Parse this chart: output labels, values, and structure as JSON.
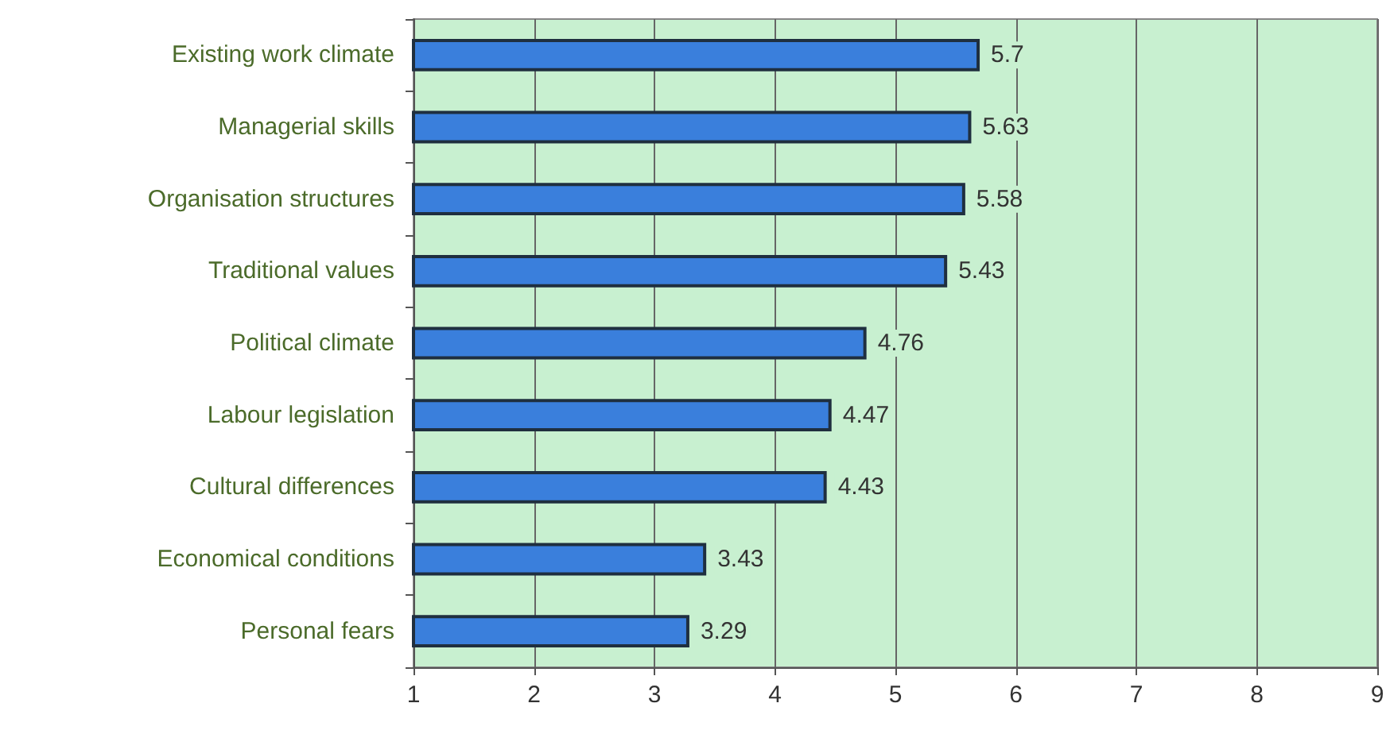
{
  "chart_data": {
    "type": "bar",
    "orientation": "horizontal",
    "categories": [
      "Existing work climate",
      "Managerial skills",
      "Organisation structures",
      "Traditional values",
      "Political climate",
      "Labour legislation",
      "Cultural differences",
      "Economical conditions",
      "Personal fears"
    ],
    "values": [
      5.7,
      5.63,
      5.58,
      5.43,
      4.76,
      4.47,
      4.43,
      3.43,
      3.29
    ],
    "color": "#3a7fdc",
    "xlim": [
      1,
      9
    ],
    "xticks": [
      1,
      2,
      3,
      4,
      5,
      6,
      7,
      8,
      9
    ],
    "grid": "x",
    "data_labels": true
  }
}
